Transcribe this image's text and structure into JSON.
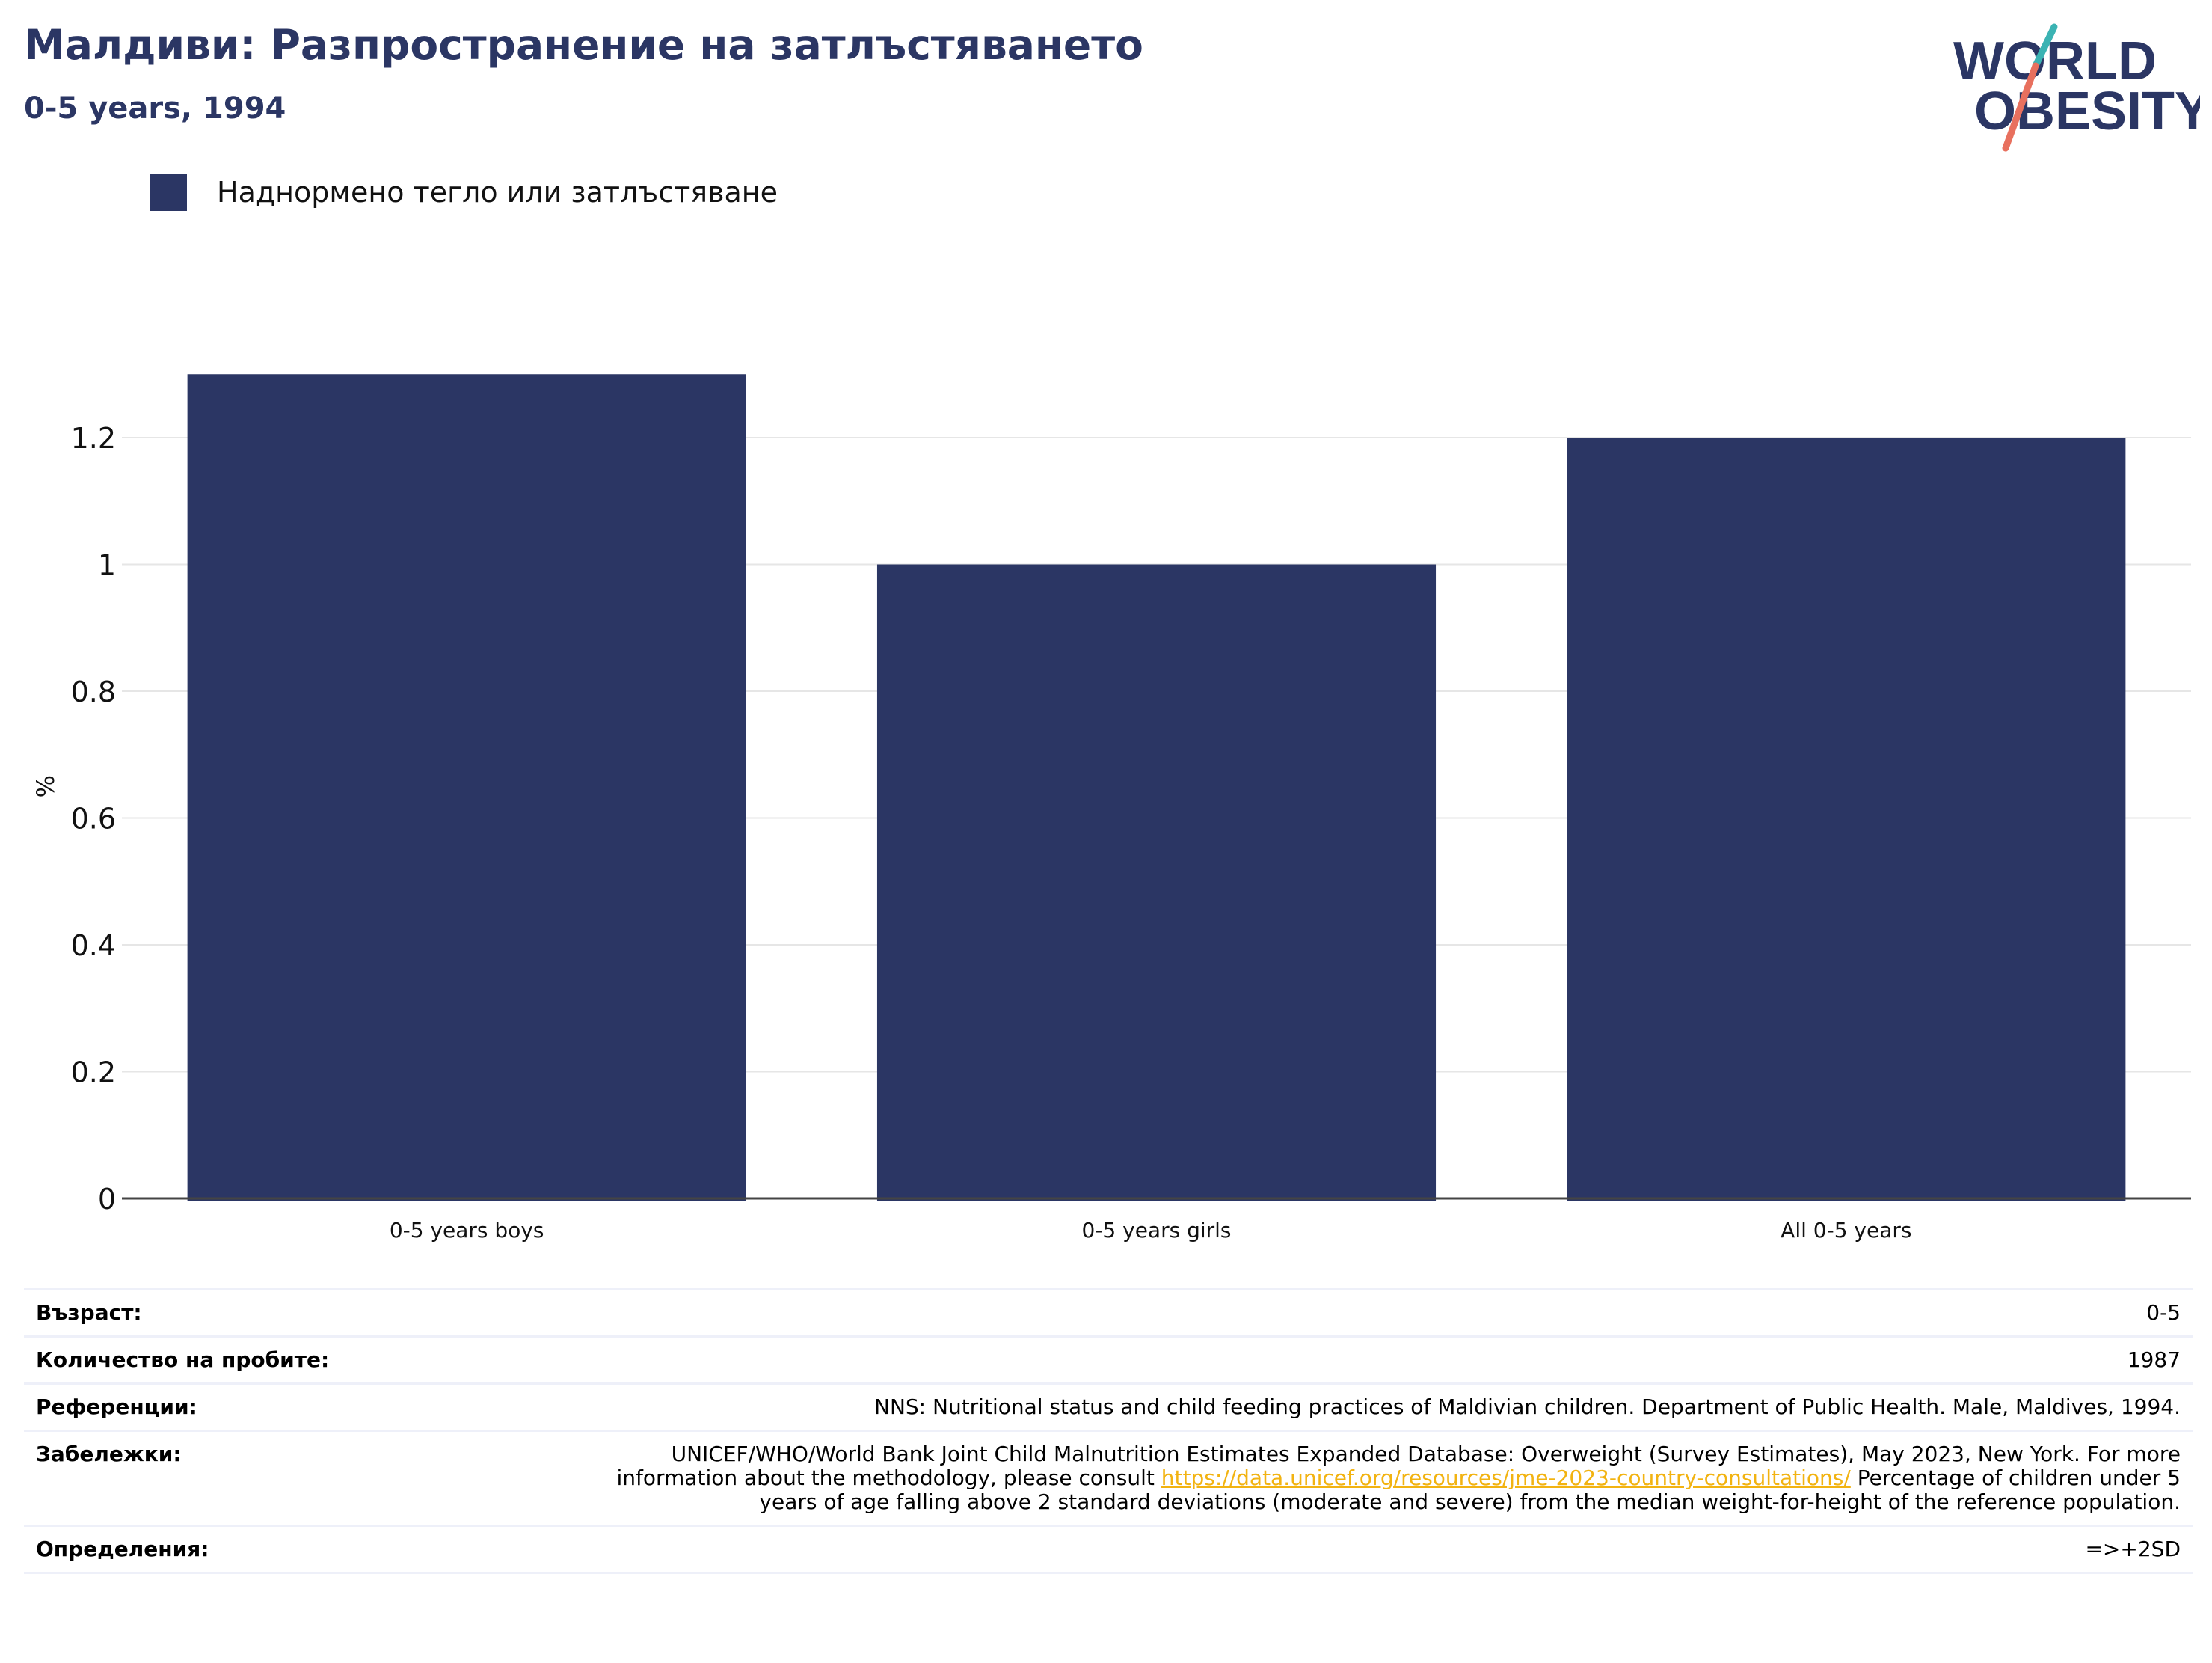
{
  "header": {
    "title": "Малдиви: Разпространение на затлъстяването",
    "subtitle": "0-5 years, 1994"
  },
  "logo": {
    "line1": "WORLD",
    "line2": "OBESITY"
  },
  "legend": {
    "label": "Наднормено тегло или затлъстяване"
  },
  "colors": {
    "bar": "#2b3664",
    "title": "#2b3664",
    "link": "#f2b311",
    "logo_teal": "#3bb3b3",
    "logo_coral": "#e8705e"
  },
  "chart_data": {
    "type": "bar",
    "categories": [
      "0-5 years boys",
      "0-5 years girls",
      "All 0-5 years"
    ],
    "series": [
      {
        "name": "Наднормено тегло или затлъстяване",
        "values": [
          1.3,
          1.0,
          1.2
        ]
      }
    ],
    "ylabel": "%",
    "ylim": [
      0,
      1.3
    ],
    "yticks": [
      0,
      0.2,
      0.4,
      0.6,
      0.8,
      1,
      1.2
    ],
    "ytick_labels": [
      "0",
      "0.2",
      "0.4",
      "0.6",
      "0.8",
      "1",
      "1.2"
    ],
    "grid": true
  },
  "info": {
    "age_label": "Възраст:",
    "age_value": "0-5",
    "sample_label": "Количество на пробите:",
    "sample_value": "1987",
    "refs_label": "Референции:",
    "refs_value": "NNS: Nutritional status and child feeding practices of Maldivian children. Department of Public Health. Male, Maldives, 1994.",
    "notes_label": "Забележки:",
    "notes_pre": "UNICEF/WHO/World Bank Joint Child Malnutrition Estimates Expanded Database: Overweight (Survey Estimates), May 2023, New York. For more information about the methodology, please consult",
    "notes_link": "https://data.unicef.org/resources/jme-2023-country-consultations/",
    "notes_post": "Percentage of children under 5 years of age falling above 2 standard deviations (moderate and severe) from the median weight-for-height of the reference population.",
    "defs_label": "Определения:",
    "defs_value": "=>+2SD"
  }
}
